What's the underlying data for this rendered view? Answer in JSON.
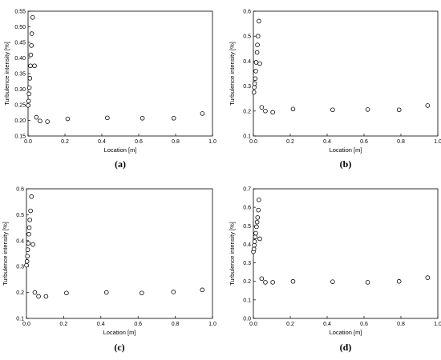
{
  "chart_data": [
    {
      "panel_label": "(a)",
      "type": "scatter",
      "xlabel": "Location [m]",
      "ylabel": "Turbulence intensity [%]",
      "xlim": [
        0.0,
        1.0
      ],
      "ylim": [
        0.15,
        0.55
      ],
      "xticks": [
        "0.0",
        "0.2",
        "0.4",
        "0.6",
        "0.8",
        "1.0"
      ],
      "yticks": [
        "0.15",
        "0.20",
        "0.25",
        "0.30",
        "0.35",
        "0.40",
        "0.45",
        "0.50",
        "0.55"
      ],
      "grid": false,
      "marker": "open-circle",
      "series": [
        {
          "points": [
            {
              "x": 0.0,
              "y": 0.248
            },
            {
              "x": 0.003,
              "y": 0.262
            },
            {
              "x": 0.005,
              "y": 0.285
            },
            {
              "x": 0.007,
              "y": 0.305
            },
            {
              "x": 0.01,
              "y": 0.335
            },
            {
              "x": 0.013,
              "y": 0.375
            },
            {
              "x": 0.015,
              "y": 0.41
            },
            {
              "x": 0.018,
              "y": 0.44
            },
            {
              "x": 0.02,
              "y": 0.478
            },
            {
              "x": 0.025,
              "y": 0.53
            },
            {
              "x": 0.035,
              "y": 0.375
            },
            {
              "x": 0.045,
              "y": 0.21
            },
            {
              "x": 0.065,
              "y": 0.198
            },
            {
              "x": 0.105,
              "y": 0.196
            },
            {
              "x": 0.215,
              "y": 0.205
            },
            {
              "x": 0.43,
              "y": 0.208
            },
            {
              "x": 0.62,
              "y": 0.207
            },
            {
              "x": 0.79,
              "y": 0.207
            },
            {
              "x": 0.945,
              "y": 0.222
            }
          ]
        }
      ]
    },
    {
      "panel_label": "(b)",
      "type": "scatter",
      "xlabel": "Location [m]",
      "ylabel": "Turbulence intensity [%]",
      "xlim": [
        0.0,
        1.0
      ],
      "ylim": [
        0.1,
        0.6
      ],
      "xticks": [
        "0.0",
        "0.2",
        "0.4",
        "0.6",
        "0.8",
        "1.0"
      ],
      "yticks": [
        "0.1",
        "0.2",
        "0.3",
        "0.4",
        "0.5",
        "0.6"
      ],
      "grid": false,
      "marker": "open-circle",
      "series": [
        {
          "points": [
            {
              "x": 0.003,
              "y": 0.275
            },
            {
              "x": 0.005,
              "y": 0.295
            },
            {
              "x": 0.007,
              "y": 0.31
            },
            {
              "x": 0.01,
              "y": 0.33
            },
            {
              "x": 0.013,
              "y": 0.36
            },
            {
              "x": 0.015,
              "y": 0.395
            },
            {
              "x": 0.02,
              "y": 0.435
            },
            {
              "x": 0.022,
              "y": 0.465
            },
            {
              "x": 0.025,
              "y": 0.5
            },
            {
              "x": 0.03,
              "y": 0.56
            },
            {
              "x": 0.035,
              "y": 0.39
            },
            {
              "x": 0.045,
              "y": 0.215
            },
            {
              "x": 0.065,
              "y": 0.2
            },
            {
              "x": 0.105,
              "y": 0.195
            },
            {
              "x": 0.215,
              "y": 0.208
            },
            {
              "x": 0.43,
              "y": 0.205
            },
            {
              "x": 0.62,
              "y": 0.206
            },
            {
              "x": 0.79,
              "y": 0.205
            },
            {
              "x": 0.945,
              "y": 0.222
            }
          ]
        }
      ]
    },
    {
      "panel_label": "(c)",
      "type": "scatter",
      "xlabel": "Location [m]",
      "ylabel": "Turbulence intensity [%]",
      "xlim": [
        0.0,
        1.0
      ],
      "ylim": [
        0.1,
        0.6
      ],
      "xticks": [
        "0.0",
        "0.2",
        "0.4",
        "0.6",
        "0.8",
        "1.0"
      ],
      "yticks": [
        "0.1",
        "0.2",
        "0.3",
        "0.4",
        "0.5",
        "0.6"
      ],
      "grid": false,
      "marker": "open-circle",
      "series": [
        {
          "points": [
            {
              "x": 0.0,
              "y": 0.305
            },
            {
              "x": 0.003,
              "y": 0.32
            },
            {
              "x": 0.005,
              "y": 0.34
            },
            {
              "x": 0.007,
              "y": 0.365
            },
            {
              "x": 0.01,
              "y": 0.39
            },
            {
              "x": 0.013,
              "y": 0.425
            },
            {
              "x": 0.015,
              "y": 0.45
            },
            {
              "x": 0.018,
              "y": 0.48
            },
            {
              "x": 0.022,
              "y": 0.515
            },
            {
              "x": 0.027,
              "y": 0.57
            },
            {
              "x": 0.035,
              "y": 0.385
            },
            {
              "x": 0.045,
              "y": 0.2
            },
            {
              "x": 0.065,
              "y": 0.185
            },
            {
              "x": 0.105,
              "y": 0.185
            },
            {
              "x": 0.215,
              "y": 0.198
            },
            {
              "x": 0.43,
              "y": 0.2
            },
            {
              "x": 0.62,
              "y": 0.198
            },
            {
              "x": 0.79,
              "y": 0.202
            },
            {
              "x": 0.945,
              "y": 0.21
            }
          ]
        }
      ]
    },
    {
      "panel_label": "(d)",
      "type": "scatter",
      "xlabel": "Location [m]",
      "ylabel": "Turbulence intensity [%]",
      "xlim": [
        0.0,
        1.0
      ],
      "ylim": [
        0.0,
        0.7
      ],
      "xticks": [
        "0.0",
        "0.2",
        "0.4",
        "0.6",
        "0.8",
        "1.0"
      ],
      "yticks": [
        "0.0",
        "0.1",
        "0.2",
        "0.3",
        "0.4",
        "0.5",
        "0.6",
        "0.7"
      ],
      "grid": false,
      "marker": "open-circle",
      "series": [
        {
          "points": [
            {
              "x": 0.0,
              "y": 0.36
            },
            {
              "x": 0.003,
              "y": 0.375
            },
            {
              "x": 0.005,
              "y": 0.395
            },
            {
              "x": 0.007,
              "y": 0.415
            },
            {
              "x": 0.01,
              "y": 0.44
            },
            {
              "x": 0.013,
              "y": 0.46
            },
            {
              "x": 0.017,
              "y": 0.495
            },
            {
              "x": 0.02,
              "y": 0.52
            },
            {
              "x": 0.023,
              "y": 0.545
            },
            {
              "x": 0.027,
              "y": 0.585
            },
            {
              "x": 0.03,
              "y": 0.64
            },
            {
              "x": 0.035,
              "y": 0.43
            },
            {
              "x": 0.045,
              "y": 0.215
            },
            {
              "x": 0.065,
              "y": 0.195
            },
            {
              "x": 0.105,
              "y": 0.195
            },
            {
              "x": 0.215,
              "y": 0.2
            },
            {
              "x": 0.43,
              "y": 0.198
            },
            {
              "x": 0.62,
              "y": 0.195
            },
            {
              "x": 0.79,
              "y": 0.2
            },
            {
              "x": 0.945,
              "y": 0.22
            }
          ]
        }
      ]
    }
  ]
}
